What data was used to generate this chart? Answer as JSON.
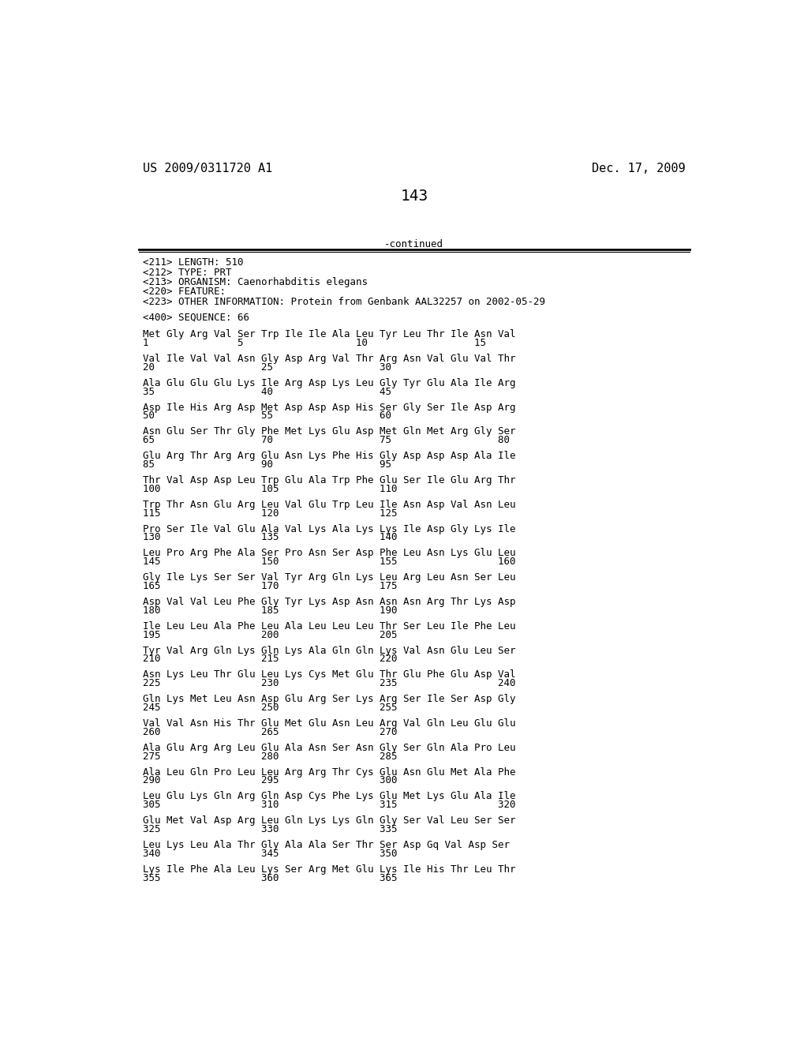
{
  "header_left": "US 2009/0311720 A1",
  "header_right": "Dec. 17, 2009",
  "page_number": "143",
  "continued_text": "-continued",
  "metadata": [
    "<211> LENGTH: 510",
    "<212> TYPE: PRT",
    "<213> ORGANISM: Caenorhabditis elegans",
    "<220> FEATURE:",
    "<223> OTHER INFORMATION: Protein from Genbank AAL32257 on 2002-05-29"
  ],
  "sequence_header": "<400> SEQUENCE: 66",
  "sequence_blocks": [
    [
      "Met Gly Arg Val Ser Trp Ile Ile Ala Leu Tyr Leu Thr Ile Asn Val",
      "1               5                   10                  15"
    ],
    [
      "Val Ile Val Val Asn Gly Asp Arg Val Thr Arg Asn Val Glu Val Thr",
      "20                  25                  30"
    ],
    [
      "Ala Glu Glu Glu Lys Ile Arg Asp Lys Leu Gly Tyr Glu Ala Ile Arg",
      "35                  40                  45"
    ],
    [
      "Asp Ile His Arg Asp Met Asp Asp Asp His Ser Gly Ser Ile Asp Arg",
      "50                  55                  60"
    ],
    [
      "Asn Glu Ser Thr Gly Phe Met Lys Glu Asp Met Gln Met Arg Gly Ser",
      "65                  70                  75                  80"
    ],
    [
      "Glu Arg Thr Arg Arg Glu Asn Lys Phe His Gly Asp Asp Asp Ala Ile",
      "85                  90                  95"
    ],
    [
      "Thr Val Asp Asp Leu Trp Glu Ala Trp Phe Glu Ser Ile Glu Arg Thr",
      "100                 105                 110"
    ],
    [
      "Trp Thr Asn Glu Arg Leu Val Glu Trp Leu Ile Asn Asp Val Asn Leu",
      "115                 120                 125"
    ],
    [
      "Pro Ser Ile Val Glu Ala Val Lys Ala Lys Lys Ile Asp Gly Lys Ile",
      "130                 135                 140"
    ],
    [
      "Leu Pro Arg Phe Ala Ser Pro Asn Ser Asp Phe Leu Asn Lys Glu Leu",
      "145                 150                 155                 160"
    ],
    [
      "Gly Ile Lys Ser Ser Val Tyr Arg Gln Lys Leu Arg Leu Asn Ser Leu",
      "165                 170                 175"
    ],
    [
      "Asp Val Val Leu Phe Gly Tyr Lys Asp Asn Asn Asn Arg Thr Lys Asp",
      "180                 185                 190"
    ],
    [
      "Ile Leu Leu Ala Phe Leu Ala Leu Leu Leu Thr Ser Leu Ile Phe Leu",
      "195                 200                 205"
    ],
    [
      "Tyr Val Arg Gln Lys Gln Lys Ala Gln Gln Lys Val Asn Glu Leu Ser",
      "210                 215                 220"
    ],
    [
      "Asn Lys Leu Thr Glu Leu Lys Cys Met Glu Thr Glu Phe Glu Asp Val",
      "225                 230                 235                 240"
    ],
    [
      "Gln Lys Met Leu Asn Asp Glu Arg Ser Lys Arg Ser Ile Ser Asp Gly",
      "245                 250                 255"
    ],
    [
      "Val Val Asn His Thr Glu Met Glu Asn Leu Arg Val Gln Leu Glu Glu",
      "260                 265                 270"
    ],
    [
      "Ala Glu Arg Arg Leu Glu Ala Asn Ser Asn Gly Ser Gln Ala Pro Leu",
      "275                 280                 285"
    ],
    [
      "Ala Leu Gln Pro Leu Leu Arg Arg Thr Cys Glu Asn Glu Met Ala Phe",
      "290                 295                 300"
    ],
    [
      "Leu Glu Lys Gln Arg Gln Asp Cys Phe Lys Glu Met Lys Glu Ala Ile",
      "305                 310                 315                 320"
    ],
    [
      "Glu Met Val Asp Arg Leu Gln Lys Lys Gln Gly Ser Val Leu Ser Ser",
      "325                 330                 335"
    ],
    [
      "Leu Lys Leu Ala Thr Gly Ala Ala Ser Thr Ser Asp Gq Val Asp Ser",
      "340                 345                 350"
    ],
    [
      "Lys Ile Phe Ala Leu Lys Ser Arg Met Glu Lys Ile His Thr Leu Thr",
      "355                 360                 365"
    ]
  ],
  "font_size_body": 9.0,
  "font_size_header": 11,
  "font_size_page_num": 14,
  "bg_color": "#ffffff",
  "text_color": "#000000"
}
